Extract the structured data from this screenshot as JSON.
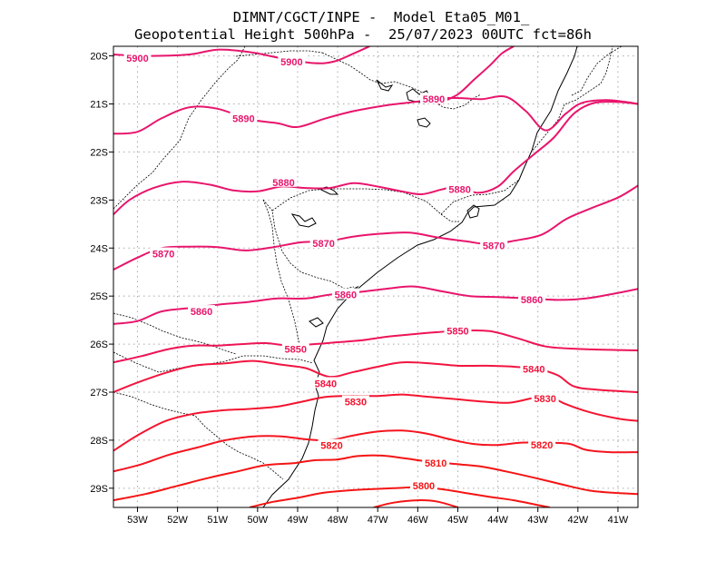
{
  "title": {
    "line1": "DIMNT/CGCT/INPE -  Model Eta05_M01_",
    "line2": "Geopotential Height 500hPa -  25/07/2023 00UTC fct=86h"
  },
  "map": {
    "lon_range": [
      -53.6,
      -40.5
    ],
    "lat_range": [
      -29.4,
      -19.8
    ],
    "x_ticks": [
      -53,
      -52,
      -51,
      -50,
      -49,
      -48,
      -47,
      -46,
      -45,
      -44,
      -43,
      -42,
      -41
    ],
    "y_ticks": [
      -20,
      -21,
      -22,
      -23,
      -24,
      -25,
      -26,
      -27,
      -28,
      -29
    ],
    "x_tick_labels": [
      "53W",
      "52W",
      "51W",
      "50W",
      "49W",
      "48W",
      "47W",
      "46W",
      "45W",
      "44W",
      "43W",
      "42W",
      "41W"
    ],
    "y_tick_labels": [
      "20S",
      "21S",
      "22S",
      "23S",
      "24S",
      "25S",
      "26S",
      "27S",
      "28S",
      "29S"
    ],
    "grid": true,
    "contour_interval_m": 10
  },
  "contours": [
    {
      "level": "5900",
      "color": "#e8156c",
      "pts": [
        [
          -53.6,
          -19.97
        ],
        [
          -52.8,
          -20.0
        ],
        [
          -51.7,
          -19.97
        ],
        [
          -51.0,
          -19.87
        ],
        [
          -50.2,
          -19.92
        ],
        [
          -49.4,
          -20.05
        ],
        [
          -48.6,
          -20.15
        ],
        [
          -48.1,
          -20.12
        ],
        [
          -47.6,
          -19.95
        ],
        [
          -47.2,
          -19.8
        ]
      ],
      "labels": [
        {
          "text": "5900",
          "lon": -53.0,
          "lat": -20.05
        },
        {
          "text": "5900",
          "lon": -49.15,
          "lat": -20.12
        }
      ]
    },
    {
      "level": "5900",
      "color": "#e8156c",
      "pts": [
        [
          -45.5,
          -21.0
        ],
        [
          -45.0,
          -20.8
        ],
        [
          -44.6,
          -20.5
        ],
        [
          -44.2,
          -20.2
        ],
        [
          -43.9,
          -19.95
        ],
        [
          -43.6,
          -19.8
        ]
      ],
      "labels": []
    },
    {
      "level": "5890",
      "color": "#e8156c",
      "pts": [
        [
          -53.6,
          -21.62
        ],
        [
          -53.0,
          -21.58
        ],
        [
          -52.4,
          -21.3
        ],
        [
          -51.7,
          -21.07
        ],
        [
          -51.0,
          -21.1
        ],
        [
          -50.2,
          -21.32
        ],
        [
          -49.5,
          -21.4
        ],
        [
          -49.0,
          -21.48
        ],
        [
          -48.3,
          -21.3
        ],
        [
          -47.6,
          -21.15
        ],
        [
          -46.8,
          -21.03
        ],
        [
          -46.0,
          -20.95
        ],
        [
          -45.5,
          -20.88
        ],
        [
          -44.9,
          -20.88
        ],
        [
          -44.4,
          -20.9
        ],
        [
          -43.8,
          -20.85
        ],
        [
          -43.3,
          -21.15
        ],
        [
          -42.8,
          -21.55
        ],
        [
          -42.3,
          -21.2
        ],
        [
          -41.9,
          -20.98
        ],
        [
          -41.3,
          -20.92
        ],
        [
          -40.8,
          -20.96
        ],
        [
          -40.5,
          -21.0
        ]
      ],
      "labels": [
        {
          "text": "5890",
          "lon": -50.35,
          "lat": -21.3
        },
        {
          "text": "5890",
          "lon": -45.6,
          "lat": -20.9
        }
      ]
    },
    {
      "level": "5880",
      "color": "#e8156c",
      "pts": [
        [
          -53.6,
          -23.3
        ],
        [
          -53.2,
          -23.0
        ],
        [
          -52.6,
          -22.75
        ],
        [
          -51.9,
          -22.62
        ],
        [
          -51.2,
          -22.68
        ],
        [
          -50.6,
          -22.8
        ],
        [
          -50.0,
          -22.82
        ],
        [
          -49.4,
          -22.72
        ],
        [
          -48.8,
          -22.75
        ],
        [
          -48.2,
          -22.75
        ],
        [
          -47.6,
          -22.65
        ],
        [
          -47.0,
          -22.72
        ],
        [
          -46.4,
          -22.82
        ],
        [
          -45.9,
          -22.88
        ],
        [
          -45.4,
          -22.78
        ],
        [
          -45.0,
          -22.72
        ],
        [
          -44.5,
          -22.85
        ],
        [
          -44.0,
          -22.72
        ],
        [
          -43.6,
          -22.4
        ],
        [
          -43.1,
          -22.05
        ],
        [
          -42.6,
          -21.7
        ],
        [
          -42.1,
          -21.2
        ],
        [
          -41.6,
          -20.98
        ],
        [
          -41.0,
          -20.96
        ],
        [
          -40.5,
          -21.0
        ]
      ],
      "labels": [
        {
          "text": "5880",
          "lon": -49.35,
          "lat": -22.63
        },
        {
          "text": "5880",
          "lon": -44.95,
          "lat": -22.78
        }
      ]
    },
    {
      "level": "5870",
      "color": "#e8156c",
      "pts": [
        [
          -53.6,
          -24.45
        ],
        [
          -53.0,
          -24.2
        ],
        [
          -52.4,
          -24.0
        ],
        [
          -51.7,
          -23.97
        ],
        [
          -51.0,
          -23.98
        ],
        [
          -50.3,
          -24.05
        ],
        [
          -49.6,
          -23.98
        ],
        [
          -48.9,
          -23.88
        ],
        [
          -48.2,
          -23.85
        ],
        [
          -47.6,
          -23.76
        ],
        [
          -46.9,
          -23.7
        ],
        [
          -46.2,
          -23.68
        ],
        [
          -45.5,
          -23.78
        ],
        [
          -44.8,
          -23.86
        ],
        [
          -44.2,
          -23.92
        ],
        [
          -43.6,
          -23.85
        ],
        [
          -42.9,
          -23.72
        ],
        [
          -42.3,
          -23.4
        ],
        [
          -41.7,
          -23.18
        ],
        [
          -41.0,
          -22.95
        ],
        [
          -40.5,
          -22.7
        ]
      ],
      "labels": [
        {
          "text": "5870",
          "lon": -52.35,
          "lat": -24.12
        },
        {
          "text": "5870",
          "lon": -48.35,
          "lat": -23.9
        },
        {
          "text": "5870",
          "lon": -44.1,
          "lat": -23.95
        }
      ]
    },
    {
      "level": "5860",
      "color": "#e8156c",
      "pts": [
        [
          -53.6,
          -25.58
        ],
        [
          -53.0,
          -25.52
        ],
        [
          -52.4,
          -25.32
        ],
        [
          -51.7,
          -25.25
        ],
        [
          -51.0,
          -25.18
        ],
        [
          -50.2,
          -25.12
        ],
        [
          -49.5,
          -25.05
        ],
        [
          -48.8,
          -25.05
        ],
        [
          -48.2,
          -24.97
        ],
        [
          -47.5,
          -24.92
        ],
        [
          -46.8,
          -24.85
        ],
        [
          -46.1,
          -24.8
        ],
        [
          -45.4,
          -24.9
        ],
        [
          -44.7,
          -25.0
        ],
        [
          -44.0,
          -25.02
        ],
        [
          -43.2,
          -25.05
        ],
        [
          -42.5,
          -25.08
        ],
        [
          -41.8,
          -25.05
        ],
        [
          -41.1,
          -24.95
        ],
        [
          -40.5,
          -24.85
        ]
      ],
      "labels": [
        {
          "text": "5860",
          "lon": -51.4,
          "lat": -25.32
        },
        {
          "text": "5860",
          "lon": -47.8,
          "lat": -24.97
        },
        {
          "text": "5860",
          "lon": -43.15,
          "lat": -25.07
        }
      ]
    },
    {
      "level": "5850",
      "color": "#ee1456",
      "pts": [
        [
          -53.6,
          -26.38
        ],
        [
          -52.9,
          -26.25
        ],
        [
          -52.2,
          -26.1
        ],
        [
          -51.6,
          -26.03
        ],
        [
          -51.0,
          -26.03
        ],
        [
          -50.4,
          -26.0
        ],
        [
          -49.8,
          -25.98
        ],
        [
          -49.2,
          -26.03
        ],
        [
          -48.6,
          -26.0
        ],
        [
          -48.0,
          -25.96
        ],
        [
          -47.4,
          -25.92
        ],
        [
          -46.8,
          -25.85
        ],
        [
          -46.2,
          -25.8
        ],
        [
          -45.5,
          -25.75
        ],
        [
          -44.9,
          -25.72
        ],
        [
          -44.2,
          -25.73
        ],
        [
          -43.5,
          -25.88
        ],
        [
          -42.8,
          -26.05
        ],
        [
          -42.0,
          -26.1
        ],
        [
          -41.2,
          -26.12
        ],
        [
          -40.5,
          -26.13
        ]
      ],
      "labels": [
        {
          "text": "5850",
          "lon": -49.05,
          "lat": -26.1
        },
        {
          "text": "5850",
          "lon": -45.0,
          "lat": -25.72
        }
      ]
    },
    {
      "level": "5840",
      "color": "#f2143f",
      "pts": [
        [
          -53.6,
          -27.0
        ],
        [
          -53.0,
          -26.8
        ],
        [
          -52.3,
          -26.6
        ],
        [
          -51.6,
          -26.45
        ],
        [
          -50.8,
          -26.4
        ],
        [
          -50.1,
          -26.35
        ],
        [
          -49.4,
          -26.43
        ],
        [
          -48.8,
          -26.5
        ],
        [
          -48.2,
          -26.68
        ],
        [
          -47.6,
          -26.58
        ],
        [
          -47.0,
          -26.47
        ],
        [
          -46.4,
          -26.38
        ],
        [
          -45.7,
          -26.4
        ],
        [
          -45.0,
          -26.45
        ],
        [
          -44.3,
          -26.45
        ],
        [
          -43.6,
          -26.47
        ],
        [
          -43.0,
          -26.52
        ],
        [
          -42.5,
          -26.65
        ],
        [
          -42.1,
          -26.88
        ],
        [
          -41.5,
          -26.95
        ],
        [
          -40.5,
          -27.0
        ]
      ],
      "labels": [
        {
          "text": "5840",
          "lon": -48.3,
          "lat": -26.82
        },
        {
          "text": "5840",
          "lon": -43.1,
          "lat": -26.52
        }
      ]
    },
    {
      "level": "5830",
      "color": "#f41430",
      "pts": [
        [
          -53.6,
          -28.22
        ],
        [
          -53.0,
          -27.9
        ],
        [
          -52.3,
          -27.6
        ],
        [
          -51.6,
          -27.45
        ],
        [
          -50.9,
          -27.38
        ],
        [
          -50.2,
          -27.35
        ],
        [
          -49.5,
          -27.3
        ],
        [
          -48.9,
          -27.2
        ],
        [
          -48.3,
          -27.1
        ],
        [
          -47.7,
          -27.08
        ],
        [
          -47.0,
          -27.08
        ],
        [
          -46.4,
          -27.05
        ],
        [
          -45.7,
          -27.1
        ],
        [
          -45.0,
          -27.15
        ],
        [
          -44.3,
          -27.2
        ],
        [
          -43.7,
          -27.22
        ],
        [
          -43.1,
          -27.12
        ],
        [
          -42.7,
          -27.1
        ],
        [
          -42.3,
          -27.25
        ],
        [
          -41.7,
          -27.42
        ],
        [
          -41.0,
          -27.55
        ],
        [
          -40.5,
          -27.6
        ]
      ],
      "labels": [
        {
          "text": "5830",
          "lon": -47.55,
          "lat": -27.2
        },
        {
          "text": "5830",
          "lon": -42.82,
          "lat": -27.13
        }
      ]
    },
    {
      "level": "5820",
      "color": "#f5141f",
      "pts": [
        [
          -53.6,
          -28.65
        ],
        [
          -52.9,
          -28.5
        ],
        [
          -52.2,
          -28.3
        ],
        [
          -51.5,
          -28.15
        ],
        [
          -50.8,
          -28.0
        ],
        [
          -50.1,
          -27.92
        ],
        [
          -49.4,
          -27.92
        ],
        [
          -48.8,
          -27.98
        ],
        [
          -48.2,
          -28.0
        ],
        [
          -47.6,
          -27.9
        ],
        [
          -47.0,
          -27.82
        ],
        [
          -46.4,
          -27.8
        ],
        [
          -45.8,
          -27.86
        ],
        [
          -45.2,
          -27.98
        ],
        [
          -44.6,
          -28.08
        ],
        [
          -44.0,
          -28.1
        ],
        [
          -43.4,
          -28.05
        ],
        [
          -42.8,
          -28.05
        ],
        [
          -42.2,
          -28.08
        ],
        [
          -41.8,
          -28.2
        ],
        [
          -41.2,
          -28.25
        ],
        [
          -40.5,
          -28.25
        ]
      ],
      "labels": [
        {
          "text": "5820",
          "lon": -48.15,
          "lat": -28.11
        },
        {
          "text": "5820",
          "lon": -42.9,
          "lat": -28.1
        }
      ]
    },
    {
      "level": "5810",
      "color": "#f51414",
      "pts": [
        [
          -53.6,
          -29.25
        ],
        [
          -52.8,
          -29.12
        ],
        [
          -52.0,
          -28.95
        ],
        [
          -51.2,
          -28.78
        ],
        [
          -50.5,
          -28.65
        ],
        [
          -49.8,
          -28.52
        ],
        [
          -49.1,
          -28.48
        ],
        [
          -48.6,
          -28.42
        ],
        [
          -48.0,
          -28.4
        ],
        [
          -47.5,
          -28.33
        ],
        [
          -46.9,
          -28.32
        ],
        [
          -46.3,
          -28.38
        ],
        [
          -45.7,
          -28.45
        ],
        [
          -45.0,
          -28.5
        ],
        [
          -44.4,
          -28.55
        ],
        [
          -43.8,
          -28.65
        ],
        [
          -43.1,
          -28.78
        ],
        [
          -42.4,
          -28.92
        ],
        [
          -41.7,
          -29.05
        ],
        [
          -41.0,
          -29.1
        ],
        [
          -40.5,
          -29.12
        ]
      ],
      "labels": [
        {
          "text": "5810",
          "lon": -45.55,
          "lat": -28.47
        }
      ]
    },
    {
      "level": "5800",
      "color": "#f51414",
      "pts": [
        [
          -50.2,
          -29.4
        ],
        [
          -49.6,
          -29.28
        ],
        [
          -49.0,
          -29.2
        ],
        [
          -48.4,
          -29.1
        ],
        [
          -47.8,
          -29.05
        ],
        [
          -47.2,
          -29.02
        ],
        [
          -46.6,
          -29.0
        ],
        [
          -46.0,
          -28.98
        ],
        [
          -45.4,
          -29.02
        ],
        [
          -44.8,
          -29.1
        ],
        [
          -44.2,
          -29.18
        ],
        [
          -43.6,
          -29.25
        ],
        [
          -43.0,
          -29.35
        ],
        [
          -42.7,
          -29.4
        ]
      ],
      "labels": [
        {
          "text": "5800",
          "lon": -45.85,
          "lat": -28.95
        }
      ]
    },
    {
      "level": "5790",
      "color": "#f51414",
      "pts": [
        [
          -47.1,
          -29.4
        ],
        [
          -46.6,
          -29.3
        ],
        [
          -46.0,
          -29.25
        ],
        [
          -45.5,
          -29.28
        ],
        [
          -45.0,
          -29.4
        ]
      ],
      "labels": []
    }
  ]
}
